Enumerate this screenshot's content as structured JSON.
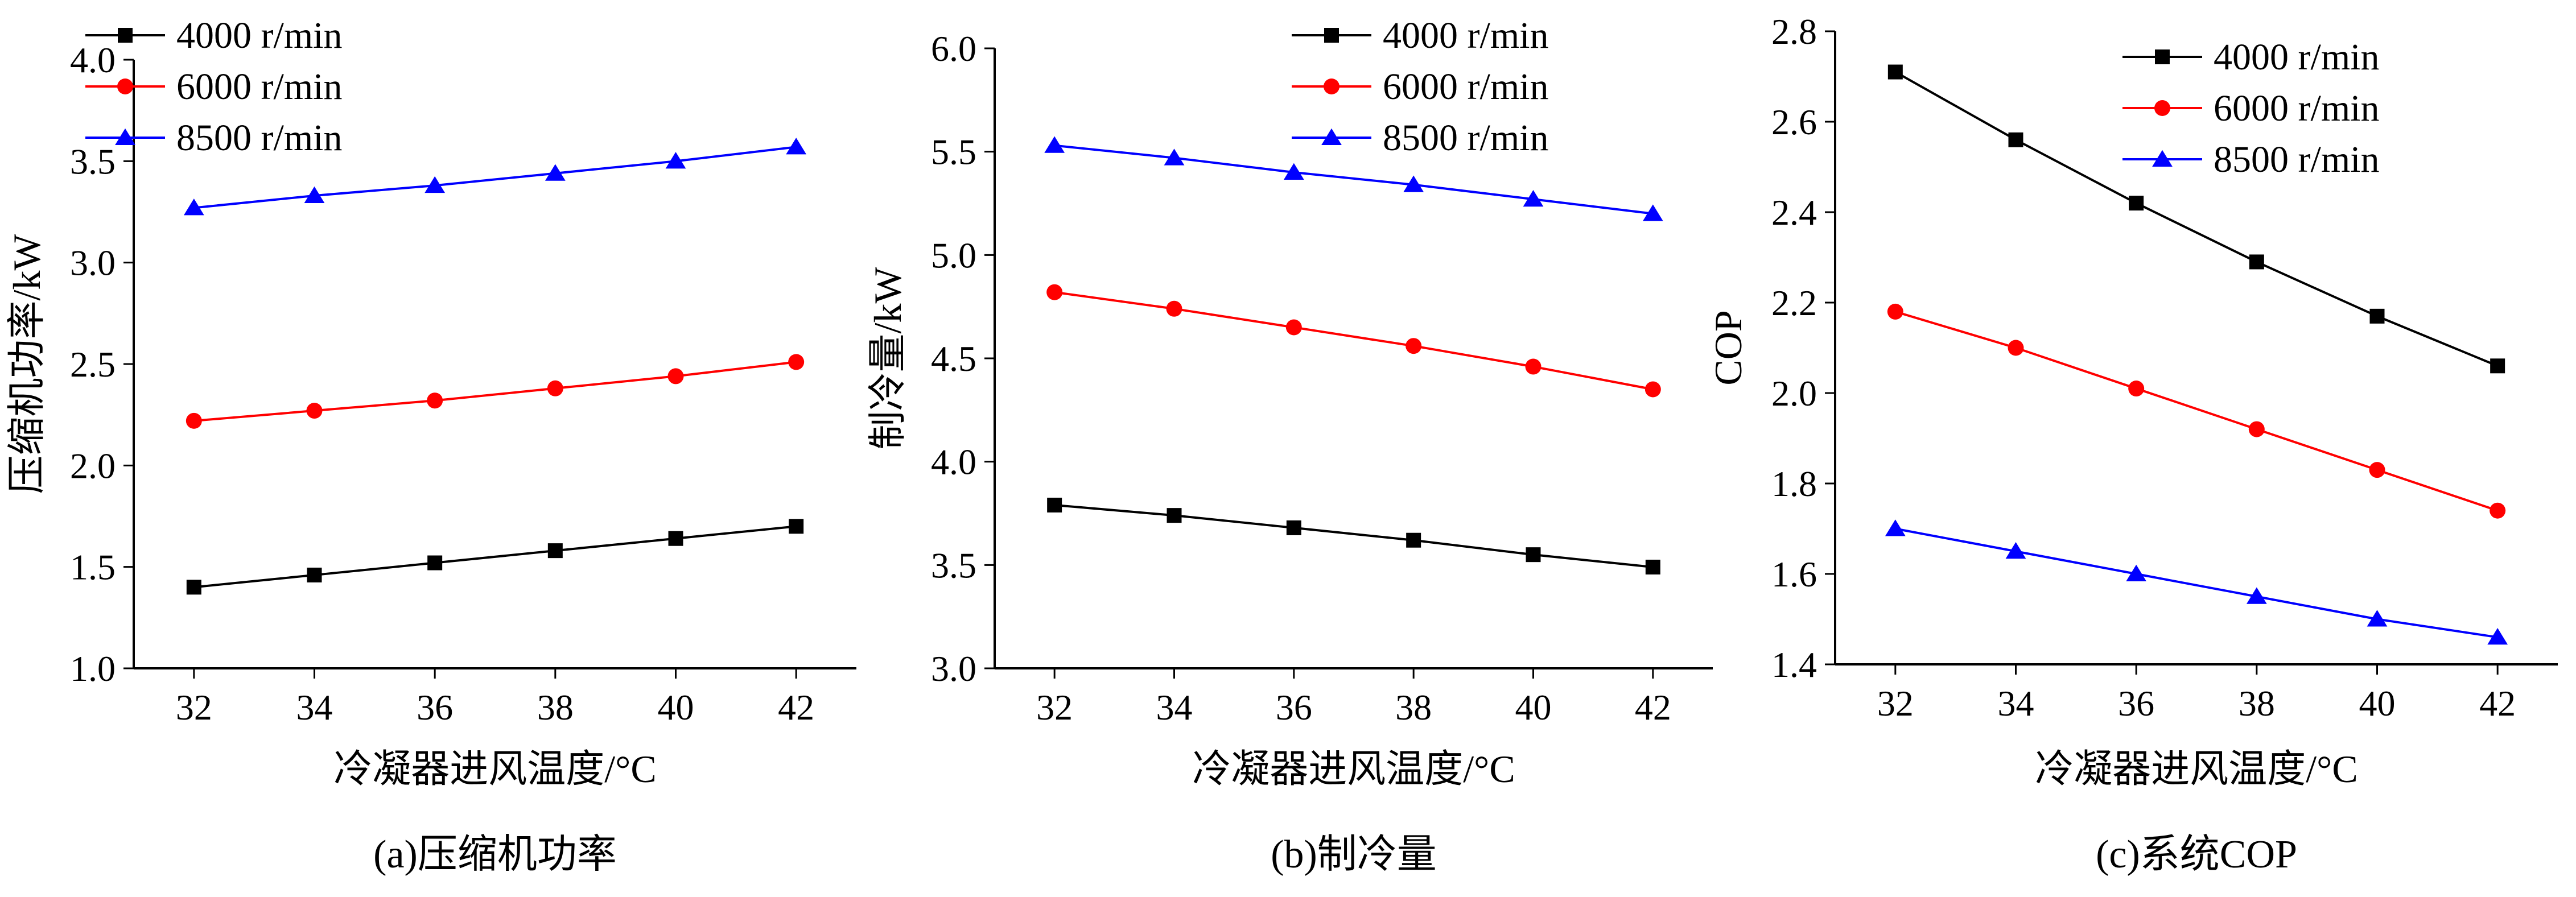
{
  "colors": {
    "4000 r/min": "#000000",
    "6000 r/min": "#ff0000",
    "8500 r/min": "#0000ff"
  },
  "chart_data": [
    {
      "type": "line",
      "caption": "(a)压缩机功率",
      "xlabel": "冷凝器进风温度/°C",
      "ylabel": "压缩机功率/kW",
      "x": [
        32,
        34,
        36,
        38,
        40,
        42
      ],
      "xticks": [
        "32",
        "34",
        "36",
        "38",
        "40",
        "42"
      ],
      "xlim": [
        31,
        43
      ],
      "ylim": [
        1.0,
        4.0
      ],
      "yticks": [
        "1.0",
        "1.5",
        "2.0",
        "2.5",
        "3.0",
        "3.5",
        "4.0"
      ],
      "grid": false,
      "legend_position": "top-left",
      "series": [
        {
          "name": "4000 r/min",
          "marker": "square",
          "values": [
            1.4,
            1.46,
            1.52,
            1.58,
            1.64,
            1.7
          ]
        },
        {
          "name": "6000 r/min",
          "marker": "circle",
          "values": [
            2.22,
            2.27,
            2.32,
            2.38,
            2.44,
            2.51
          ]
        },
        {
          "name": "8500 r/min",
          "marker": "triangle",
          "values": [
            3.27,
            3.33,
            3.38,
            3.44,
            3.5,
            3.57
          ]
        }
      ]
    },
    {
      "type": "line",
      "caption": "(b)制冷量",
      "xlabel": "冷凝器进风温度/°C",
      "ylabel": "制冷量/kW",
      "x": [
        32,
        34,
        36,
        38,
        40,
        42
      ],
      "xticks": [
        "32",
        "34",
        "36",
        "38",
        "40",
        "42"
      ],
      "xlim": [
        31,
        43
      ],
      "ylim": [
        3.0,
        6.0
      ],
      "yticks": [
        "3.0",
        "3.5",
        "4.0",
        "4.5",
        "5.0",
        "5.5",
        "6.0"
      ],
      "grid": false,
      "legend_position": "top-right",
      "series": [
        {
          "name": "4000 r/min",
          "marker": "square",
          "values": [
            3.79,
            3.74,
            3.68,
            3.62,
            3.55,
            3.49
          ]
        },
        {
          "name": "6000 r/min",
          "marker": "circle",
          "values": [
            4.82,
            4.74,
            4.65,
            4.56,
            4.46,
            4.35
          ]
        },
        {
          "name": "8500 r/min",
          "marker": "triangle",
          "values": [
            5.53,
            5.47,
            5.4,
            5.34,
            5.27,
            5.2
          ]
        }
      ]
    },
    {
      "type": "line",
      "caption": "(c)系统COP",
      "xlabel": "冷凝器进风温度/°C",
      "ylabel": "COP",
      "x": [
        32,
        34,
        36,
        38,
        40,
        42
      ],
      "xticks": [
        "32",
        "34",
        "36",
        "38",
        "40",
        "42"
      ],
      "xlim": [
        31,
        43
      ],
      "ylim": [
        1.4,
        2.8
      ],
      "yticks": [
        "1.4",
        "1.6",
        "1.8",
        "2.0",
        "2.2",
        "2.4",
        "2.6",
        "2.8"
      ],
      "grid": false,
      "legend_position": "top-right",
      "series": [
        {
          "name": "4000 r/min",
          "marker": "square",
          "values": [
            2.71,
            2.56,
            2.42,
            2.29,
            2.17,
            2.06
          ]
        },
        {
          "name": "6000 r/min",
          "marker": "circle",
          "values": [
            2.18,
            2.1,
            2.01,
            1.92,
            1.83,
            1.74
          ]
        },
        {
          "name": "8500 r/min",
          "marker": "triangle",
          "values": [
            1.7,
            1.65,
            1.6,
            1.55,
            1.5,
            1.46
          ]
        }
      ]
    }
  ]
}
